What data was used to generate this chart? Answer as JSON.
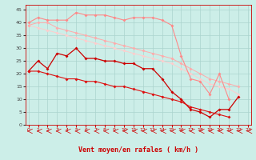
{
  "x": [
    0,
    1,
    2,
    3,
    4,
    5,
    6,
    7,
    8,
    9,
    10,
    11,
    12,
    13,
    14,
    15,
    16,
    17,
    18,
    19,
    20,
    21,
    22,
    23
  ],
  "line_upper1_y": [
    40,
    42,
    41,
    41,
    41,
    44,
    43,
    43,
    43,
    42,
    41,
    42,
    42,
    42,
    41,
    39,
    27,
    18,
    17,
    12,
    20,
    10,
    null,
    null
  ],
  "line_upper2_y": [
    39,
    40,
    40,
    38,
    37,
    36,
    35,
    34,
    33,
    32,
    31,
    30,
    29,
    28,
    27,
    26,
    24,
    22,
    20,
    18,
    17,
    16,
    15,
    null
  ],
  "line_upper3_y": [
    39,
    38,
    37,
    36,
    35,
    34,
    33,
    32,
    31,
    30,
    29,
    28,
    27,
    26,
    25,
    24,
    22,
    20,
    18,
    16,
    15,
    14,
    12,
    null
  ],
  "line_mid1_y": [
    21,
    25,
    22,
    28,
    27,
    30,
    26,
    26,
    25,
    25,
    24,
    24,
    22,
    22,
    18,
    13,
    10,
    6,
    5,
    3,
    6,
    6,
    11,
    null
  ],
  "line_mid2_y": [
    21,
    21,
    20,
    19,
    18,
    18,
    17,
    17,
    16,
    15,
    15,
    14,
    13,
    12,
    11,
    10,
    9,
    7,
    6,
    5,
    4,
    3,
    null,
    null
  ],
  "arrows_x": [
    0,
    1,
    2,
    3,
    4,
    5,
    6,
    7,
    8,
    9,
    10,
    11,
    12,
    13,
    14,
    15,
    16,
    17,
    18,
    19,
    20,
    21,
    22,
    23
  ],
  "background_color": "#cceee8",
  "grid_color": "#aad4ce",
  "line_upper1_color": "#ff8888",
  "line_upper2_color": "#ffaaaa",
  "line_upper3_color": "#ffcccc",
  "line_mid1_color": "#cc0000",
  "line_mid2_color": "#dd1111",
  "xlabel": "Vent moyen/en rafales ( km/h )",
  "xlabel_color": "#cc0000",
  "ylim": [
    0,
    47
  ],
  "xlim": [
    -0.3,
    23.3
  ],
  "yticks": [
    0,
    5,
    10,
    15,
    20,
    25,
    30,
    35,
    40,
    45
  ],
  "xticks": [
    0,
    1,
    2,
    3,
    4,
    5,
    6,
    7,
    8,
    9,
    10,
    11,
    12,
    13,
    14,
    15,
    16,
    17,
    18,
    19,
    20,
    21,
    22,
    23
  ]
}
